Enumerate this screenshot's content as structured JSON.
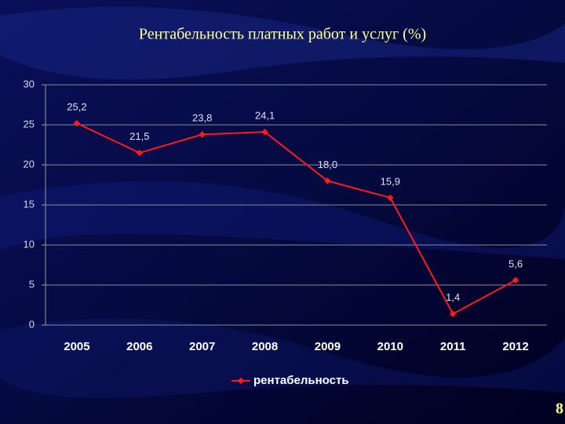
{
  "chart_data": {
    "type": "line",
    "title": "Рентабельность платных работ и услуг (%)",
    "categories": [
      "2005",
      "2006",
      "2007",
      "2008",
      "2009",
      "2010",
      "2011",
      "2012"
    ],
    "series": [
      {
        "name": "рентабельность",
        "color": "#ff1a1a",
        "values": [
          25.2,
          21.5,
          23.8,
          24.1,
          18.0,
          15.9,
          1.4,
          5.6
        ],
        "value_labels": [
          "25,2",
          "21,5",
          "23,8",
          "24,1",
          "18,0",
          "15,9",
          "1,4",
          "5,6"
        ]
      }
    ],
    "ylim": [
      0,
      30
    ],
    "yticks": [
      0,
      5,
      10,
      15,
      20,
      25,
      30
    ],
    "grid": true,
    "legend": "bottom"
  },
  "slide": {
    "page_number": "8"
  }
}
